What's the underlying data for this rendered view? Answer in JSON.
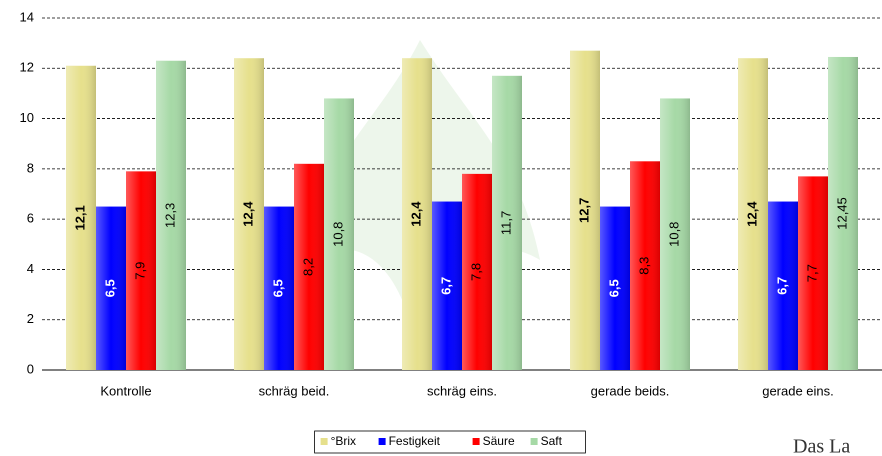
{
  "chart_data": {
    "type": "bar",
    "categories": [
      "Kontrolle",
      "schräg beid.",
      "schräg eins.",
      "gerade beids.",
      "gerade eins."
    ],
    "series": [
      {
        "name": "°Brix",
        "color": "#e6e08c",
        "values": [
          12.1,
          12.4,
          12.4,
          12.7,
          12.4
        ],
        "value_labels": [
          "12,1",
          "12,4",
          "12,4",
          "12,7",
          "12,4"
        ]
      },
      {
        "name": "Festigkeit",
        "color": "#0000ff",
        "values": [
          6.5,
          6.5,
          6.7,
          6.5,
          6.7
        ],
        "value_labels": [
          "6,5",
          "6,5",
          "6,7",
          "6,5",
          "6,7"
        ]
      },
      {
        "name": "Säure",
        "color": "#ff0000",
        "values": [
          7.9,
          8.2,
          7.8,
          8.3,
          7.7
        ],
        "value_labels": [
          "7,9",
          "8,2",
          "7,8",
          "8,3",
          "7,7"
        ]
      },
      {
        "name": "Saft",
        "color": "#a6d9a6",
        "values": [
          12.3,
          10.8,
          11.7,
          10.8,
          12.45
        ],
        "value_labels": [
          "12,3",
          "10,8",
          "11,7",
          "10,8",
          "12,45"
        ]
      }
    ],
    "ylim": [
      0,
      14
    ],
    "yticks": [
      0,
      2,
      4,
      6,
      8,
      10,
      12,
      14
    ],
    "grid": true,
    "legend": "bottom"
  },
  "logo_text": "Das La"
}
